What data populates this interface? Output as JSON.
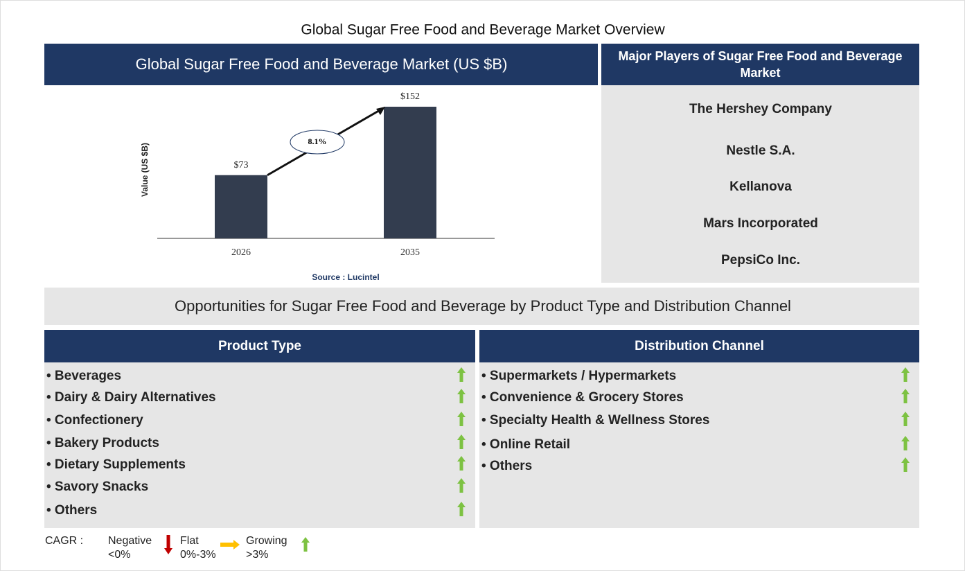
{
  "title": "Global Sugar Free Food and Beverage Market Overview",
  "chart_panel": {
    "header": "Global Sugar Free Food and Beverage Market (US $B)"
  },
  "chart_data": {
    "type": "bar",
    "categories": [
      "2026",
      "2035"
    ],
    "values": [
      73,
      152
    ],
    "value_labels": [
      "$73",
      "$152"
    ],
    "ylabel": "Value (US $B)",
    "annotation": "8.1%",
    "source": "Source : Lucintel",
    "color": "#333d4f",
    "ylim": [
      0,
      160
    ]
  },
  "players": {
    "header": "Major Players of Sugar Free Food and Beverage Market",
    "items": [
      "The Hershey Company",
      "Nestle S.A.",
      "Kellanova",
      "Mars Incorporated",
      "PepsiCo Inc."
    ]
  },
  "opportunities": {
    "title": "Opportunities for Sugar Free Food and Beverage by Product Type and Distribution Channel",
    "segments": [
      {
        "header": "Product Type",
        "items": [
          {
            "label": "• Beverages",
            "trend": "growing"
          },
          {
            "label": "• Dairy & Dairy Alternatives",
            "trend": "growing"
          },
          {
            "label": "• Confectionery",
            "trend": "growing"
          },
          {
            "label": "• Bakery Products",
            "trend": "growing"
          },
          {
            "label": "• Dietary Supplements",
            "trend": "growing"
          },
          {
            "label": "• Savory Snacks",
            "trend": "growing"
          },
          {
            "label": "• Others",
            "trend": "growing"
          }
        ]
      },
      {
        "header": "Distribution Channel",
        "items": [
          {
            "label": "• Supermarkets / Hypermarkets",
            "trend": "growing"
          },
          {
            "label": "• Convenience & Grocery Stores",
            "trend": "growing"
          },
          {
            "label": "• Specialty Health & Wellness Stores",
            "trend": "growing"
          },
          {
            "label": "• Online Retail",
            "trend": "growing"
          },
          {
            "label": "• Others",
            "trend": "growing"
          }
        ]
      }
    ]
  },
  "legend": {
    "label": "CAGR :",
    "items": [
      {
        "name": "Negative",
        "range": "<0%",
        "trend": "negative"
      },
      {
        "name": "Flat",
        "range": "0%-3%",
        "trend": "flat"
      },
      {
        "name": "Growing",
        "range": ">3%",
        "trend": "growing"
      }
    ]
  }
}
